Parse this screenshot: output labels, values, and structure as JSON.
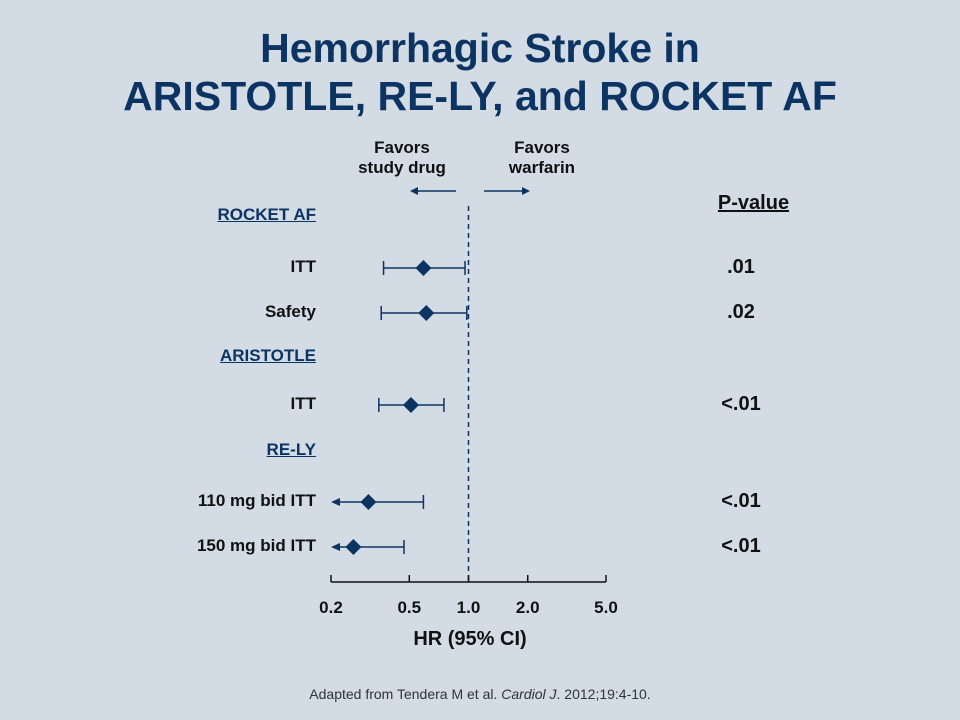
{
  "title": {
    "line1": "Hemorrhagic Stroke in",
    "line2": "ARISTOTLE, RE-LY, and ROCKET AF"
  },
  "favors": {
    "left_line1": "Favors",
    "left_line2": "study drug",
    "right_line1": "Favors",
    "right_line2": "warfarin"
  },
  "pvalue_header": "P-value",
  "citation": {
    "prefix": "Adapted from Tendera M et al. ",
    "journal": "Cardiol J",
    "suffix": ". 2012;19:4-10."
  },
  "colors": {
    "background": "#d3dbe5",
    "title": "#0c3462",
    "marker": "#0c3462"
  },
  "chart_data": {
    "type": "forest",
    "xscale": "log",
    "xlim": [
      0.2,
      5.0
    ],
    "xticks": [
      0.2,
      0.5,
      1.0,
      2.0,
      5.0
    ],
    "xtick_labels": [
      "0.2",
      "0.5",
      "1.0",
      "2.0",
      "5.0"
    ],
    "xlabel": "HR (95%  CI)",
    "reference_line": 1.0,
    "rows": [
      {
        "kind": "group",
        "label": "ROCKET AF"
      },
      {
        "kind": "estimate",
        "label": "ITT",
        "hr": 0.59,
        "ci_low": 0.37,
        "ci_high": 0.96,
        "p": ".01",
        "arrow_low": false
      },
      {
        "kind": "estimate",
        "label": "Safety",
        "hr": 0.61,
        "ci_low": 0.36,
        "ci_high": 0.98,
        "p": ".02",
        "arrow_low": false
      },
      {
        "kind": "group",
        "label": "ARISTOTLE"
      },
      {
        "kind": "estimate",
        "label": "ITT",
        "hr": 0.51,
        "ci_low": 0.35,
        "ci_high": 0.75,
        "p": "<.01",
        "arrow_low": false
      },
      {
        "kind": "group",
        "label": "RE-LY"
      },
      {
        "kind": "estimate",
        "label": "110 mg bid ITT",
        "hr": 0.31,
        "ci_low": 0.2,
        "ci_high": 0.59,
        "p": "<.01",
        "arrow_low": true
      },
      {
        "kind": "estimate",
        "label": "150 mg bid ITT",
        "hr": 0.26,
        "ci_low": 0.2,
        "ci_high": 0.47,
        "p": "<.01",
        "arrow_low": true
      }
    ]
  }
}
